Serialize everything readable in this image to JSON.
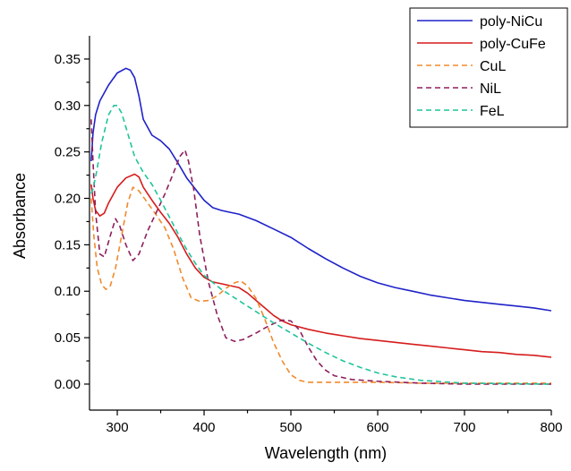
{
  "chart_data": {
    "type": "line",
    "title": "",
    "xlabel": "Wavelength (nm)",
    "ylabel": "Absorbance",
    "xlim": [
      268,
      800
    ],
    "ylim": [
      -0.028,
      0.375
    ],
    "xticks": [
      300,
      400,
      500,
      600,
      700,
      800
    ],
    "yticks": [
      0.0,
      0.05,
      0.1,
      0.15,
      0.2,
      0.25,
      0.3,
      0.35
    ],
    "xtick_labels": [
      "300",
      "400",
      "500",
      "600",
      "700",
      "800"
    ],
    "ytick_labels": [
      "0.00",
      "0.05",
      "0.10",
      "0.15",
      "0.20",
      "0.25",
      "0.30",
      "0.35"
    ],
    "grid": false,
    "legend_position": "top-right",
    "series": [
      {
        "name": "poly-NiCu",
        "color": "#1f22c8",
        "dash": "solid",
        "points": [
          [
            270,
            0.24
          ],
          [
            272,
            0.27
          ],
          [
            275,
            0.29
          ],
          [
            280,
            0.305
          ],
          [
            290,
            0.322
          ],
          [
            300,
            0.335
          ],
          [
            310,
            0.34
          ],
          [
            315,
            0.338
          ],
          [
            320,
            0.33
          ],
          [
            325,
            0.31
          ],
          [
            330,
            0.285
          ],
          [
            340,
            0.268
          ],
          [
            350,
            0.262
          ],
          [
            360,
            0.253
          ],
          [
            370,
            0.238
          ],
          [
            380,
            0.222
          ],
          [
            390,
            0.21
          ],
          [
            400,
            0.198
          ],
          [
            410,
            0.19
          ],
          [
            420,
            0.187
          ],
          [
            430,
            0.185
          ],
          [
            440,
            0.183
          ],
          [
            460,
            0.176
          ],
          [
            480,
            0.167
          ],
          [
            500,
            0.158
          ],
          [
            520,
            0.146
          ],
          [
            540,
            0.135
          ],
          [
            560,
            0.125
          ],
          [
            580,
            0.116
          ],
          [
            600,
            0.109
          ],
          [
            620,
            0.104
          ],
          [
            640,
            0.1
          ],
          [
            660,
            0.096
          ],
          [
            680,
            0.093
          ],
          [
            700,
            0.09
          ],
          [
            720,
            0.088
          ],
          [
            740,
            0.086
          ],
          [
            760,
            0.084
          ],
          [
            780,
            0.082
          ],
          [
            800,
            0.079
          ]
        ]
      },
      {
        "name": "poly-CuFe",
        "color": "#d61c1c",
        "dash": "solid",
        "points": [
          [
            270,
            0.215
          ],
          [
            272,
            0.2
          ],
          [
            275,
            0.187
          ],
          [
            280,
            0.181
          ],
          [
            285,
            0.184
          ],
          [
            290,
            0.195
          ],
          [
            300,
            0.212
          ],
          [
            310,
            0.222
          ],
          [
            320,
            0.226
          ],
          [
            325,
            0.223
          ],
          [
            330,
            0.212
          ],
          [
            340,
            0.198
          ],
          [
            350,
            0.185
          ],
          [
            360,
            0.173
          ],
          [
            370,
            0.158
          ],
          [
            380,
            0.14
          ],
          [
            390,
            0.125
          ],
          [
            400,
            0.115
          ],
          [
            410,
            0.11
          ],
          [
            420,
            0.108
          ],
          [
            430,
            0.106
          ],
          [
            440,
            0.104
          ],
          [
            450,
            0.098
          ],
          [
            460,
            0.09
          ],
          [
            470,
            0.082
          ],
          [
            480,
            0.074
          ],
          [
            490,
            0.068
          ],
          [
            500,
            0.064
          ],
          [
            520,
            0.059
          ],
          [
            540,
            0.055
          ],
          [
            560,
            0.052
          ],
          [
            580,
            0.049
          ],
          [
            600,
            0.047
          ],
          [
            620,
            0.045
          ],
          [
            640,
            0.043
          ],
          [
            660,
            0.041
          ],
          [
            680,
            0.039
          ],
          [
            700,
            0.037
          ],
          [
            720,
            0.035
          ],
          [
            740,
            0.034
          ],
          [
            760,
            0.032
          ],
          [
            780,
            0.031
          ],
          [
            800,
            0.029
          ]
        ]
      },
      {
        "name": "CuL",
        "color": "#f08a2c",
        "dash": "dashed",
        "points": [
          [
            270,
            0.2
          ],
          [
            273,
            0.16
          ],
          [
            277,
            0.125
          ],
          [
            282,
            0.107
          ],
          [
            287,
            0.102
          ],
          [
            292,
            0.106
          ],
          [
            298,
            0.125
          ],
          [
            305,
            0.16
          ],
          [
            312,
            0.195
          ],
          [
            318,
            0.212
          ],
          [
            325,
            0.208
          ],
          [
            335,
            0.195
          ],
          [
            345,
            0.182
          ],
          [
            355,
            0.168
          ],
          [
            365,
            0.145
          ],
          [
            375,
            0.115
          ],
          [
            385,
            0.093
          ],
          [
            395,
            0.089
          ],
          [
            405,
            0.09
          ],
          [
            415,
            0.095
          ],
          [
            425,
            0.103
          ],
          [
            435,
            0.109
          ],
          [
            442,
            0.111
          ],
          [
            450,
            0.106
          ],
          [
            460,
            0.092
          ],
          [
            470,
            0.07
          ],
          [
            480,
            0.045
          ],
          [
            490,
            0.025
          ],
          [
            500,
            0.01
          ],
          [
            510,
            0.004
          ],
          [
            520,
            0.002
          ],
          [
            550,
            0.002
          ],
          [
            600,
            0.002
          ],
          [
            650,
            0.001
          ],
          [
            700,
            0.001
          ],
          [
            800,
            0.001
          ]
        ]
      },
      {
        "name": "NiL",
        "color": "#8e1f5c",
        "dash": "dashed",
        "points": [
          [
            270,
            0.285
          ],
          [
            272,
            0.24
          ],
          [
            275,
            0.185
          ],
          [
            280,
            0.14
          ],
          [
            285,
            0.137
          ],
          [
            292,
            0.16
          ],
          [
            298,
            0.178
          ],
          [
            303,
            0.17
          ],
          [
            310,
            0.15
          ],
          [
            318,
            0.133
          ],
          [
            325,
            0.14
          ],
          [
            335,
            0.165
          ],
          [
            345,
            0.185
          ],
          [
            355,
            0.205
          ],
          [
            365,
            0.228
          ],
          [
            372,
            0.245
          ],
          [
            378,
            0.252
          ],
          [
            382,
            0.24
          ],
          [
            388,
            0.21
          ],
          [
            395,
            0.16
          ],
          [
            405,
            0.11
          ],
          [
            415,
            0.075
          ],
          [
            425,
            0.05
          ],
          [
            435,
            0.046
          ],
          [
            445,
            0.048
          ],
          [
            460,
            0.055
          ],
          [
            475,
            0.063
          ],
          [
            490,
            0.069
          ],
          [
            500,
            0.068
          ],
          [
            510,
            0.058
          ],
          [
            520,
            0.04
          ],
          [
            530,
            0.025
          ],
          [
            540,
            0.015
          ],
          [
            550,
            0.009
          ],
          [
            570,
            0.005
          ],
          [
            600,
            0.003
          ],
          [
            650,
            0.001
          ],
          [
            700,
            0.0
          ],
          [
            800,
            0.0
          ]
        ]
      },
      {
        "name": "FeL",
        "color": "#1fc49a",
        "dash": "dashed",
        "points": [
          [
            270,
            0.205
          ],
          [
            272,
            0.21
          ],
          [
            276,
            0.228
          ],
          [
            282,
            0.26
          ],
          [
            290,
            0.29
          ],
          [
            296,
            0.3
          ],
          [
            300,
            0.3
          ],
          [
            305,
            0.292
          ],
          [
            312,
            0.27
          ],
          [
            320,
            0.245
          ],
          [
            330,
            0.228
          ],
          [
            340,
            0.215
          ],
          [
            350,
            0.198
          ],
          [
            360,
            0.18
          ],
          [
            370,
            0.162
          ],
          [
            380,
            0.145
          ],
          [
            390,
            0.13
          ],
          [
            400,
            0.117
          ],
          [
            420,
            0.102
          ],
          [
            440,
            0.09
          ],
          [
            460,
            0.078
          ],
          [
            480,
            0.066
          ],
          [
            500,
            0.055
          ],
          [
            520,
            0.044
          ],
          [
            540,
            0.034
          ],
          [
            560,
            0.025
          ],
          [
            580,
            0.018
          ],
          [
            600,
            0.012
          ],
          [
            620,
            0.008
          ],
          [
            650,
            0.004
          ],
          [
            700,
            0.001
          ],
          [
            800,
            0.0
          ]
        ]
      }
    ]
  }
}
